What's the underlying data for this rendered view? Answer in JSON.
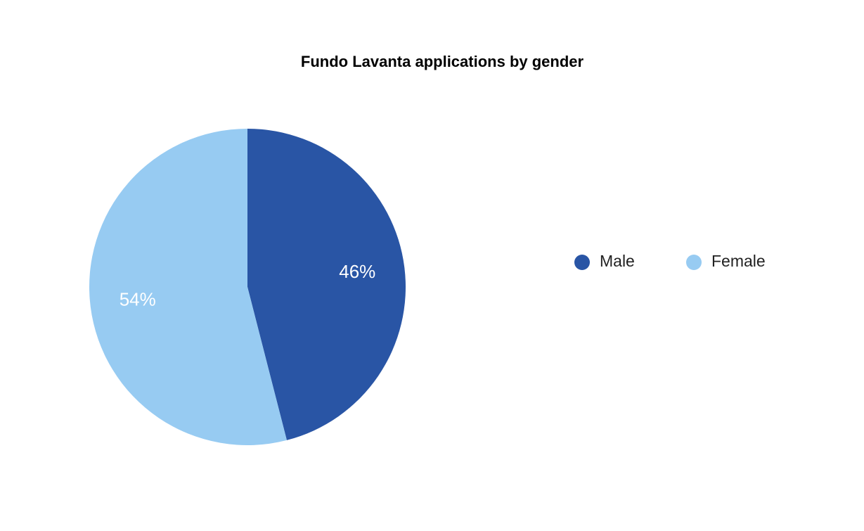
{
  "chart_data": {
    "type": "pie",
    "title": "Fundo Lavanta applications by gender",
    "categories": [
      "Male",
      "Female"
    ],
    "values": [
      46,
      54
    ],
    "value_labels": [
      "46%",
      "54%"
    ],
    "colors": [
      "#2955a5",
      "#97cbf2"
    ],
    "legend": "right"
  }
}
